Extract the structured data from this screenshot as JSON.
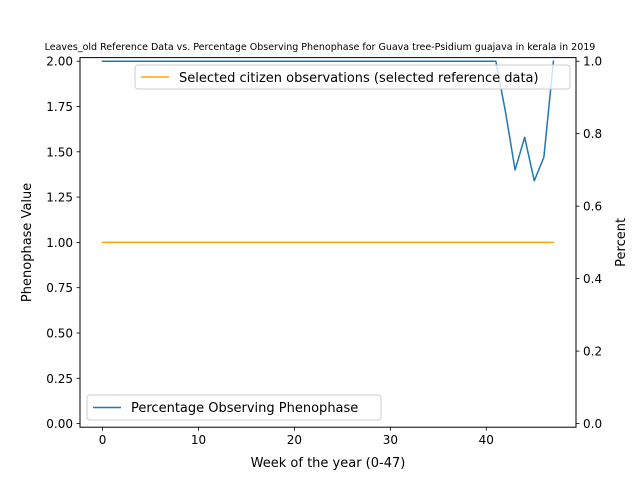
{
  "chart_data": {
    "type": "line",
    "title": "Leaves_old Reference Data vs. Percentage Observing Phenophase for Guava tree-Psidium guajava in kerala in 2019",
    "xlabel": "Week of the year (0-47)",
    "ylabel_left": "Phenophase Value",
    "ylabel_right": "Percent",
    "xlim": [
      -2.35,
      49.35
    ],
    "ylim_left": [
      -0.02,
      2.02
    ],
    "ylim_right": [
      -0.01,
      1.01
    ],
    "x_ticks": [
      0,
      10,
      20,
      30,
      40
    ],
    "x_tick_labels": [
      "0",
      "10",
      "20",
      "30",
      "40"
    ],
    "y_left_ticks": [
      0,
      0.25,
      0.5,
      0.75,
      1.0,
      1.25,
      1.5,
      1.75,
      2.0
    ],
    "y_left_tick_labels": [
      "0.00",
      "0.25",
      "0.50",
      "0.75",
      "1.00",
      "1.25",
      "1.50",
      "1.75",
      "2.00"
    ],
    "y_right_ticks": [
      0,
      0.2,
      0.4,
      0.6,
      0.8,
      1.0
    ],
    "y_right_tick_labels": [
      "0.0",
      "0.2",
      "0.4",
      "0.6",
      "0.8",
      "1.0"
    ],
    "grid": false,
    "series": [
      {
        "name": "Selected citizen observations (selected reference data)",
        "axis": "left",
        "color": "#ffa500",
        "x": [
          0,
          47
        ],
        "y": [
          1.0,
          1.0
        ]
      },
      {
        "name": "Percentage Observing Phenophase",
        "axis": "right",
        "color": "#1f77b4",
        "x": [
          0,
          41,
          42,
          43,
          44,
          45,
          46,
          47
        ],
        "y": [
          1.0,
          1.0,
          0.86,
          0.7,
          0.79,
          0.67,
          0.735,
          1.0
        ]
      }
    ],
    "legends": [
      {
        "placement": "upper-right",
        "series_index": 0
      },
      {
        "placement": "lower-left",
        "series_index": 1
      }
    ]
  }
}
